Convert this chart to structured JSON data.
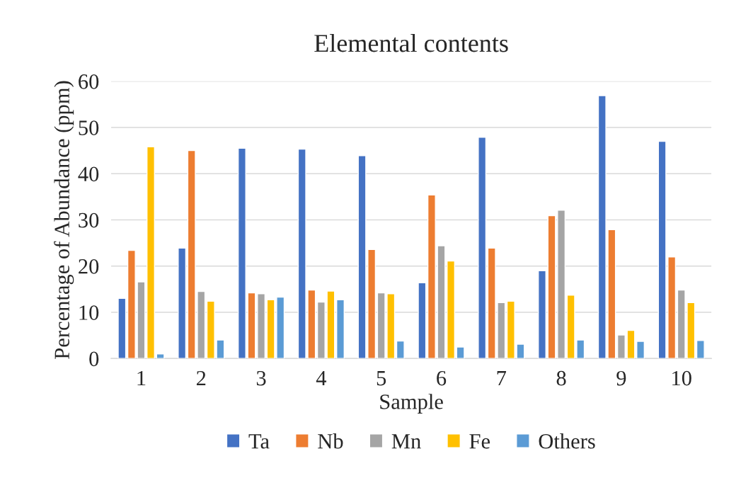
{
  "chart_data": {
    "type": "bar",
    "title": "Elemental contents",
    "xlabel": "Sample",
    "ylabel": "Percentage of Abundance (ppm)",
    "categories": [
      "1",
      "2",
      "3",
      "4",
      "5",
      "6",
      "7",
      "8",
      "9",
      "10"
    ],
    "series": [
      {
        "name": "Ta",
        "color": "#4472c4",
        "values": [
          13.0,
          23.9,
          45.5,
          45.3,
          43.9,
          16.4,
          47.9,
          19.0,
          56.9,
          47.0
        ]
      },
      {
        "name": "Nb",
        "color": "#ed7d31",
        "values": [
          23.4,
          45.0,
          14.2,
          14.8,
          23.6,
          35.4,
          23.9,
          30.9,
          27.9,
          22.0
        ]
      },
      {
        "name": "Mn",
        "color": "#a5a5a5",
        "values": [
          16.6,
          14.5,
          14.0,
          12.2,
          14.2,
          24.4,
          12.1,
          32.1,
          5.1,
          14.8
        ]
      },
      {
        "name": "Fe",
        "color": "#ffc000",
        "values": [
          45.8,
          12.4,
          12.7,
          14.6,
          14.0,
          21.1,
          12.4,
          13.7,
          6.1,
          12.1
        ]
      },
      {
        "name": "Others",
        "color": "#5b9bd5",
        "values": [
          1.0,
          4.0,
          13.3,
          12.7,
          3.8,
          2.5,
          3.1,
          4.0,
          3.7,
          3.9
        ]
      }
    ],
    "ylim": [
      0,
      60
    ],
    "yticks": [
      0,
      10,
      20,
      30,
      40,
      50,
      60
    ],
    "grid": "y",
    "legend": "bottom"
  }
}
